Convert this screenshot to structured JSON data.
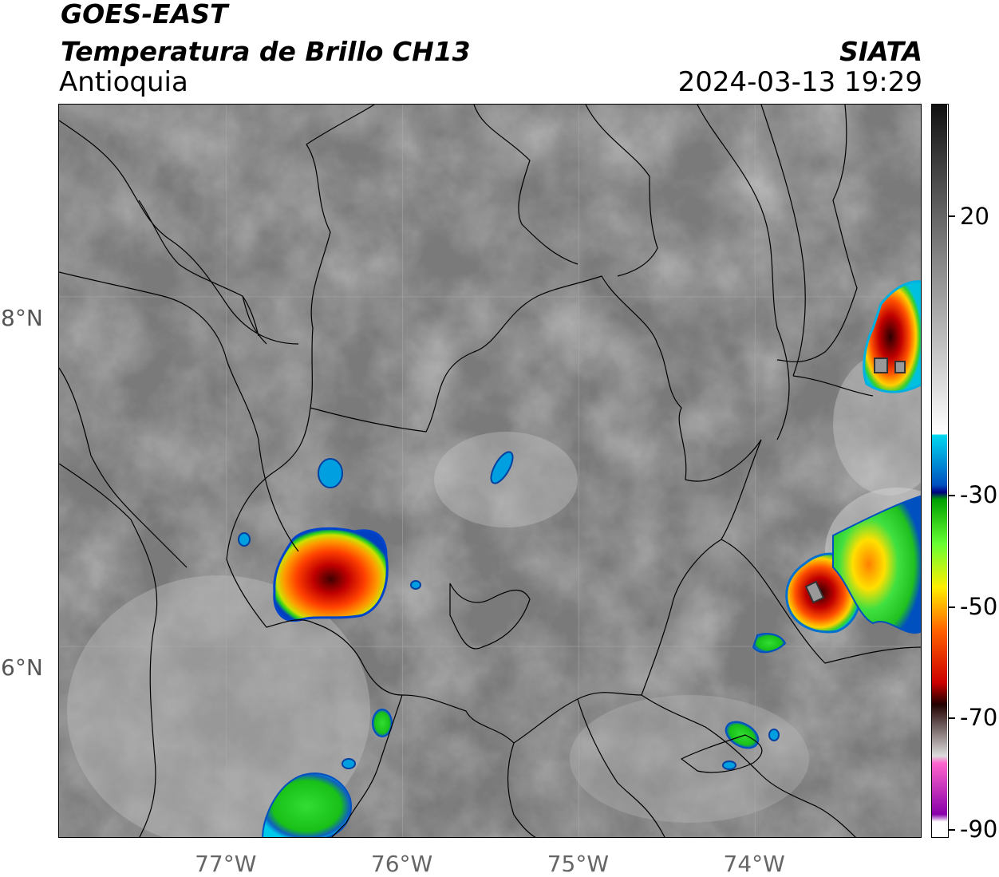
{
  "header": {
    "satellite": "GOES-EAST",
    "product": "Temperatura de Brillo CH13",
    "region": "Antioquia",
    "source": "SIATA",
    "timestamp": "2024-03-13 19:29"
  },
  "map": {
    "lon_range": [
      -77.95,
      -73.05
    ],
    "lat_range": [
      4.9,
      9.1
    ],
    "lat_ticks": [
      {
        "value": 8,
        "label": "8°N"
      },
      {
        "value": 6,
        "label": "6°N"
      }
    ],
    "lon_ticks": [
      {
        "value": -77,
        "label": "77°W"
      },
      {
        "value": -76,
        "label": "76°W"
      },
      {
        "value": -75,
        "label": "75°W"
      },
      {
        "value": -74,
        "label": "74°W"
      }
    ],
    "gridlines": true
  },
  "colorbar": {
    "ticks": [
      {
        "value": 20,
        "label": "20"
      },
      {
        "value": -30,
        "label": "-30"
      },
      {
        "value": -50,
        "label": "-50"
      },
      {
        "value": -70,
        "label": "-70"
      },
      {
        "value": -90,
        "label": "-90"
      }
    ]
  },
  "colors": {
    "cloud_gray": "#808080",
    "cold_green": "#22dd22",
    "cold_red": "#e00000",
    "cyan": "#00c8e8"
  }
}
